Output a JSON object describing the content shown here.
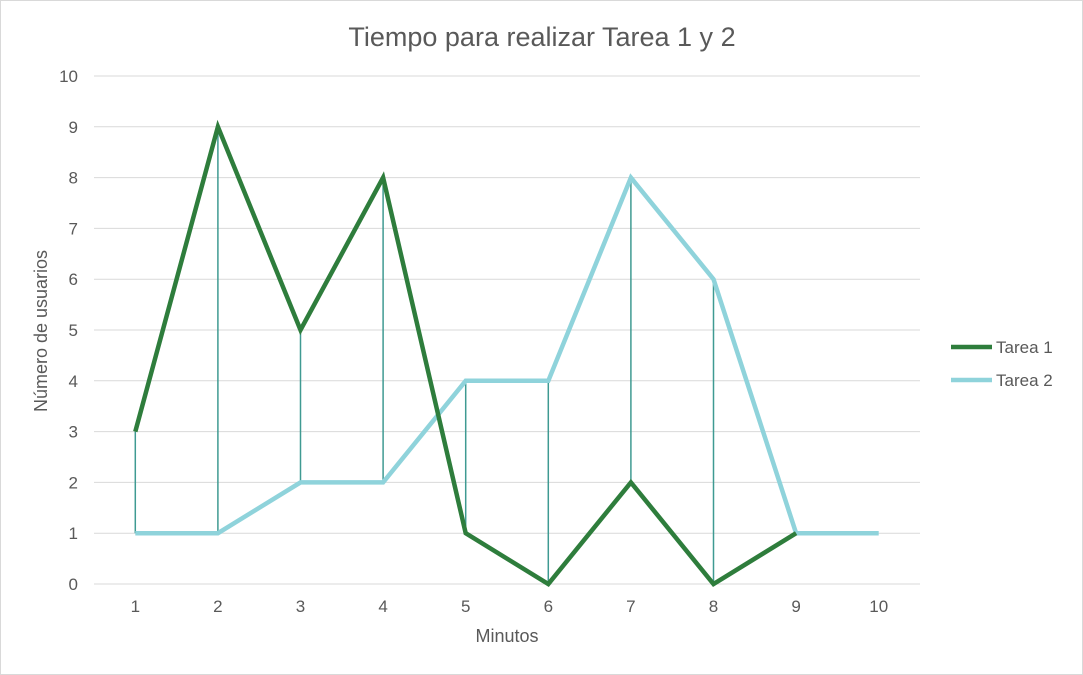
{
  "chart_data": {
    "type": "line",
    "title": "Tiempo para realizar Tarea 1 y 2",
    "xlabel": "Minutos",
    "ylabel": "Número de usuarios",
    "x": [
      1,
      2,
      3,
      4,
      5,
      6,
      7,
      8,
      9,
      10
    ],
    "ylim": [
      0,
      10
    ],
    "yticks": [
      0,
      1,
      2,
      3,
      4,
      5,
      6,
      7,
      8,
      9,
      10
    ],
    "grid": true,
    "drop_lines": true,
    "legend": "right",
    "series": [
      {
        "name": "Tarea 1",
        "color": "#2e7d3c",
        "values": [
          3,
          9,
          5,
          8,
          1,
          0,
          2,
          0,
          1,
          null
        ]
      },
      {
        "name": "Tarea 2",
        "color": "#8fd3db",
        "values": [
          1,
          1,
          2,
          2,
          4,
          4,
          8,
          6,
          1,
          1
        ]
      }
    ],
    "drop_line_color": "#3f9a92"
  }
}
